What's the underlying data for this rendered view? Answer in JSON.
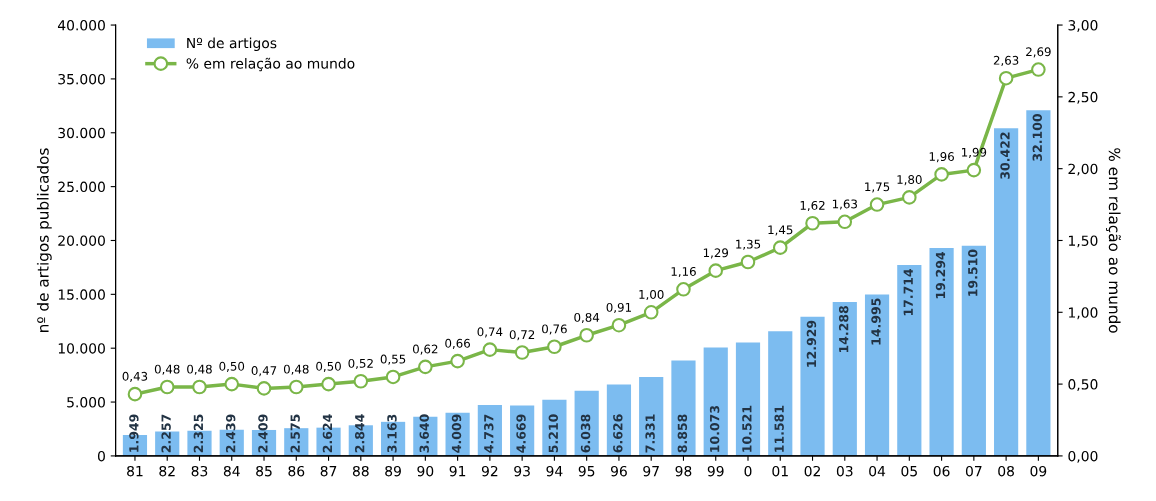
{
  "chart_data": {
    "type": "bar",
    "ylabel": "nº de artigos publicados",
    "y2label": "% em relação ao mundo",
    "categories": [
      "81",
      "82",
      "83",
      "84",
      "85",
      "86",
      "87",
      "88",
      "89",
      "90",
      "91",
      "92",
      "93",
      "94",
      "95",
      "96",
      "97",
      "98",
      "99",
      "0",
      "01",
      "02",
      "03",
      "04",
      "05",
      "06",
      "07",
      "08",
      "09"
    ],
    "series": [
      {
        "name": "Nº de artigos",
        "color": "#7cbcf0",
        "values": [
          1949,
          2257,
          2325,
          2439,
          2409,
          2575,
          2624,
          2844,
          3163,
          3640,
          4009,
          4737,
          4669,
          5210,
          6038,
          6626,
          7331,
          8858,
          10073,
          10521,
          11581,
          12929,
          14288,
          14995,
          17714,
          19294,
          19510,
          30422,
          32100
        ],
        "value_labels": [
          "1.949",
          "2.257",
          "2.325",
          "2.439",
          "2.409",
          "2.575",
          "2.624",
          "2.844",
          "3.163",
          "3.640",
          "4.009",
          "4.737",
          "4.669",
          "5.210",
          "6.038",
          "6.626",
          "7.331",
          "8.858",
          "10.073",
          "10.521",
          "11.581",
          "12.929",
          "14.288",
          "14.995",
          "17.714",
          "19.294",
          "19.510",
          "30.422",
          "32.100"
        ]
      },
      {
        "name": "% em relação ao mundo",
        "type": "line",
        "axis": "y2",
        "color": "#7ab648",
        "marker": "circle",
        "values": [
          0.43,
          0.48,
          0.48,
          0.5,
          0.47,
          0.48,
          0.5,
          0.52,
          0.55,
          0.62,
          0.66,
          0.74,
          0.72,
          0.76,
          0.84,
          0.91,
          1.0,
          1.16,
          1.29,
          1.35,
          1.45,
          1.62,
          1.63,
          1.75,
          1.8,
          1.96,
          1.99,
          2.63,
          2.69
        ],
        "value_labels": [
          "0,43",
          "0,48",
          "0,48",
          "0,50",
          "0,47",
          "0,48",
          "0,50",
          "0,52",
          "0,55",
          "0,62",
          "0,66",
          "0,74",
          "0,72",
          "0,76",
          "0,84",
          "0,91",
          "1,00",
          "1,16",
          "1,29",
          "1,35",
          "1,45",
          "1,62",
          "1,63",
          "1,75",
          "1,80",
          "1,96",
          "1,99",
          "2,63",
          "2,69"
        ]
      }
    ],
    "ylim": [
      0,
      40000
    ],
    "yticks": [
      {
        "value": 0,
        "label": "0"
      },
      {
        "value": 5000,
        "label": "5.000"
      },
      {
        "value": 10000,
        "label": "10.000"
      },
      {
        "value": 15000,
        "label": "15.000"
      },
      {
        "value": 20000,
        "label": "20.000"
      },
      {
        "value": 25000,
        "label": "25.000"
      },
      {
        "value": 30000,
        "label": "30.000"
      },
      {
        "value": 35000,
        "label": "35.000"
      },
      {
        "value": 40000,
        "label": "40.000"
      }
    ],
    "y2lim": [
      0,
      3
    ],
    "y2ticks": [
      {
        "value": 0,
        "label": "0,00"
      },
      {
        "value": 0.5,
        "label": "0,50"
      },
      {
        "value": 1,
        "label": "1,00"
      },
      {
        "value": 1.5,
        "label": "1,50"
      },
      {
        "value": 2,
        "label": "2,00"
      },
      {
        "value": 2.5,
        "label": "2,50"
      },
      {
        "value": 3,
        "label": "3,00"
      }
    ],
    "grid": false,
    "legend": "top left"
  }
}
